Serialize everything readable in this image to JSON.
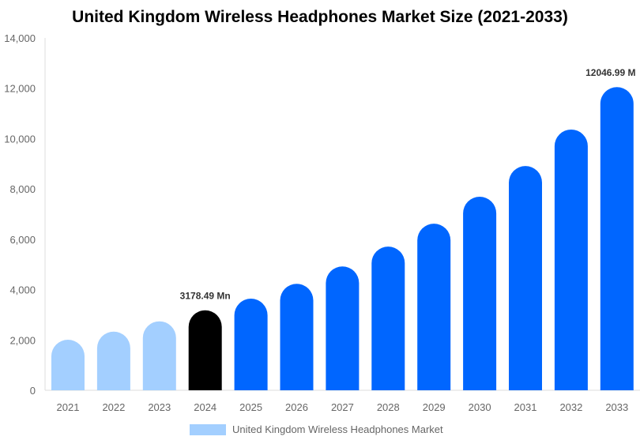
{
  "chart_data": {
    "type": "bar",
    "title": "United Kingdom Wireless Headphones Market Size (2021-2033)",
    "categories": [
      "2021",
      "2022",
      "2023",
      "2024",
      "2025",
      "2026",
      "2027",
      "2028",
      "2029",
      "2030",
      "2031",
      "2032",
      "2033"
    ],
    "series": [
      {
        "name": "United Kingdom Wireless Headphones Market",
        "values": [
          2010,
          2330,
          2740,
          3178.49,
          3640,
          4230,
          4920,
          5710,
          6620,
          7690,
          8910,
          10360,
          12046.99
        ]
      }
    ],
    "data_labels": [
      {
        "category": "2024",
        "text": "3178.49 Mn"
      },
      {
        "category": "2033",
        "text": "12046.99 M"
      }
    ],
    "ylim": [
      0,
      14000
    ],
    "yticks": [
      0,
      2000,
      4000,
      6000,
      8000,
      10000,
      12000,
      14000
    ],
    "ytick_labels": [
      "0",
      "2,000",
      "4,000",
      "6,000",
      "8,000",
      "10,000",
      "12,000",
      "14,000"
    ],
    "grid": false,
    "legend": "bottom",
    "colors": {
      "historical": "#a3cfff",
      "current": "#000000",
      "forecast": "#0066ff"
    }
  }
}
